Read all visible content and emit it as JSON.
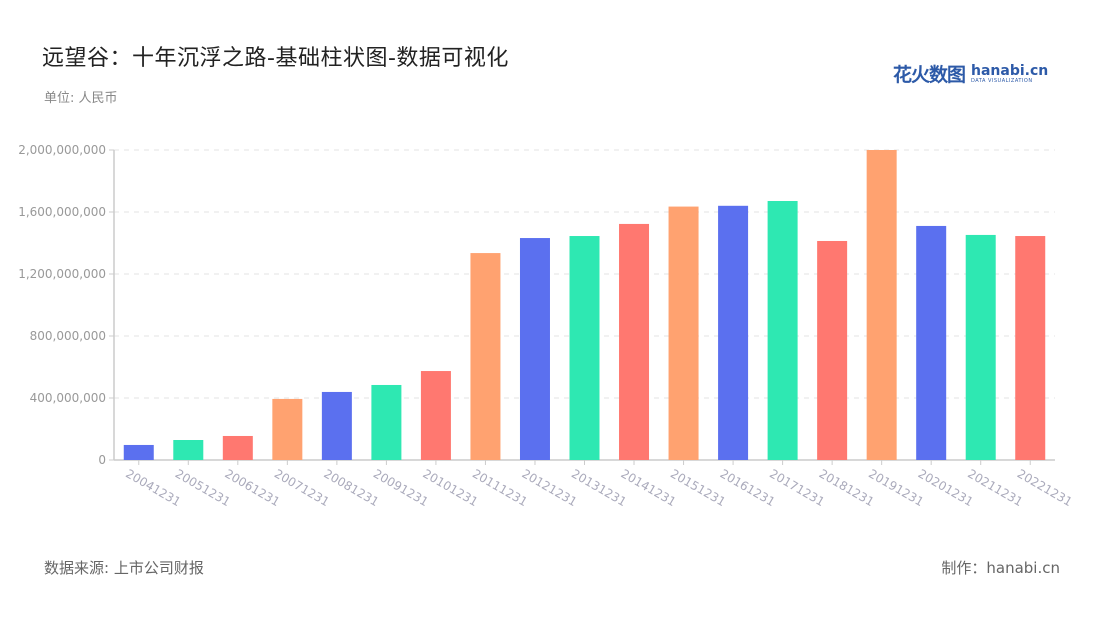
{
  "header": {
    "title": "远望谷：十年沉浮之路-基础柱状图-数据可视化",
    "unit": "单位: 人民币"
  },
  "logo": {
    "cn": "花火数图",
    "en": "hanabi.cn",
    "sub": "DATA VISUALIZATION"
  },
  "footer": {
    "source": "数据来源: 上市公司财报",
    "credit": "制作：hanabi.cn"
  },
  "colors": [
    "#5b70ef",
    "#2ee8b2",
    "#ff7870",
    "#ffa270"
  ],
  "chart_data": {
    "type": "bar",
    "title": "远望谷：十年沉浮之路-基础柱状图-数据可视化",
    "subtitle": "单位: 人民币",
    "xlabel": "",
    "ylabel": "",
    "ylim": [
      0,
      2000000000
    ],
    "yticks": [
      0,
      400000000,
      800000000,
      1200000000,
      1600000000,
      2000000000
    ],
    "ytick_labels": [
      "0",
      "400,000,000",
      "800,000,000",
      "1,200,000,000",
      "1,600,000,000",
      "2,000,000,000"
    ],
    "grid": true,
    "legend": "none",
    "categories": [
      "20041231",
      "20051231",
      "20061231",
      "20071231",
      "20081231",
      "20091231",
      "20101231",
      "20111231",
      "20121231",
      "20131231",
      "20141231",
      "20151231",
      "20161231",
      "20171231",
      "20181231",
      "20191231",
      "20201231",
      "20211231",
      "20221231"
    ],
    "values": [
      97000000,
      129000000,
      155000000,
      394000000,
      439000000,
      484000000,
      574000000,
      1335000000,
      1432000000,
      1445000000,
      1523000000,
      1635000000,
      1640000000,
      1671000000,
      1413000000,
      2000000000,
      1510000000,
      1452000000,
      1445000000
    ]
  }
}
